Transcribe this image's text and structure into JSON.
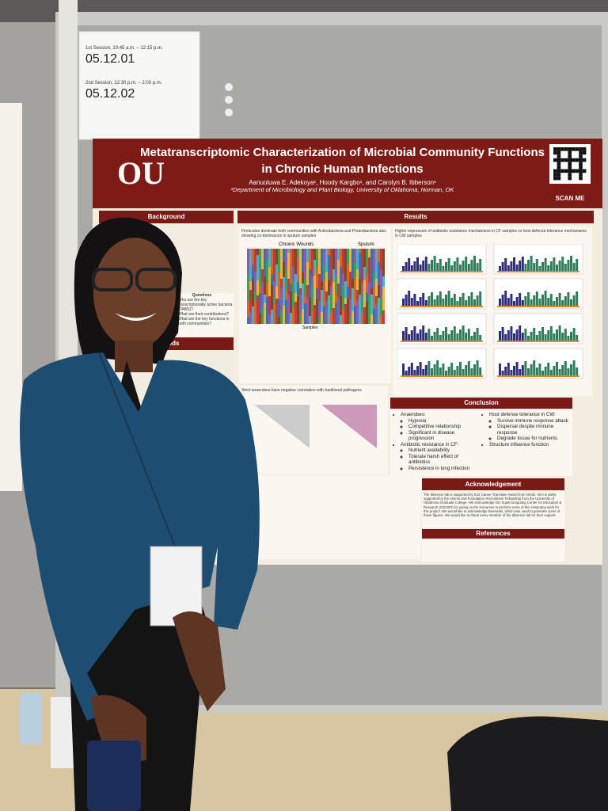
{
  "session_sign": {
    "first_session": "1st Session, 10:45 a.m. – 12:15 p.m.",
    "first_code": "05.12.01",
    "second_session": "2nd Session, 12:30 p.m. – 2:00 p.m.",
    "second_code": "05.12.02"
  },
  "poster": {
    "title": "Metatranscriptomic Characterization of Microbial Community Functions in Chronic Human Infections",
    "authors": "Aanuoluwa E. Adekoya¹, Hoody Kargbo¹, and Carolyn B. Ibberson¹",
    "affiliation": "¹Department of Microbiology and Plant Biology, University of Oklahoma, Norman, OK",
    "qr_label": "SCAN ME",
    "background": {
      "header": "Background",
      "questions_title": "Questions",
      "questions": [
        "Who are the key transcriptionally active bacteria (TABS)?",
        "What are their contributions?",
        "What are the key functions in both communities?"
      ]
    },
    "methods": {
      "header": "Methods"
    },
    "results": {
      "header": "Results",
      "finding_1": "Firmicutes dominate both communities with Actinobacteria and Proteobacteria also showing co-dominance in sputum samples",
      "chart_labels": [
        "Chronic Wounds",
        "Sputum"
      ],
      "chart_x_label": "Samples",
      "finding_2": "Higher expression of antibiotic resistance mechanisms in CF samples vs host defense tolerance mechanisms in CW samples",
      "finding_3": "Strict anaerobes have negative correlation with traditional pathogens"
    },
    "conclusion": {
      "header": "Conclusion",
      "left": [
        {
          "head": "Anaerobes:",
          "items": [
            "Hypoxia",
            "Competitive relationship",
            "Significant in disease progression"
          ]
        },
        {
          "head": "Antibiotic resistance in CF:",
          "items": [
            "Nutrient availability",
            "Tolerate harsh effect of antibiotics",
            "Persistence in lung infection"
          ]
        }
      ],
      "right": [
        {
          "head": "Host defense tolerance in CW:",
          "items": [
            "Survive immune response attack",
            "Dispersal despite immune response",
            "Degrade tissue for nutrients"
          ]
        },
        {
          "head": "Structure influence function",
          "items": []
        }
      ]
    },
    "acknowledgement": {
      "header": "Acknowledgement",
      "text": "The Ibberson lab is supported by K22 Career Transition Award from NIAID. AEA is partly supported by the Alumni and Foundation Recruitment Fellowship from the University of Oklahoma Graduate College. We acknowledge OU Supercomputing Center for Education & Research (OSCER) for giving us the resources to perform some of the computing work for this project. We would like to acknowledge Biorender, which was used to generate some of these figures. We would like to thank every member of the Ibberson lab for their support."
    },
    "references": {
      "header": "References"
    }
  }
}
